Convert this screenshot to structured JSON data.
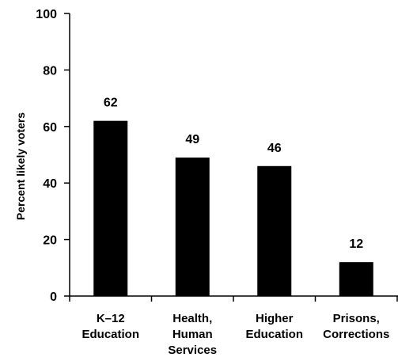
{
  "chart_data": {
    "type": "bar",
    "categories": [
      [
        "K–12",
        "Education"
      ],
      [
        "Health,",
        "Human",
        "Services"
      ],
      [
        "Higher",
        "Education"
      ],
      [
        "Prisons,",
        "Corrections"
      ]
    ],
    "values": [
      62,
      49,
      46,
      12
    ],
    "data_labels": [
      "62",
      "49",
      "46",
      "12"
    ],
    "ylabel": "Percent likely voters",
    "ylim": [
      0,
      100
    ],
    "yticks": [
      0,
      20,
      40,
      60,
      80,
      100
    ],
    "grid": false,
    "legend": "none",
    "bar_color": "#000000"
  }
}
